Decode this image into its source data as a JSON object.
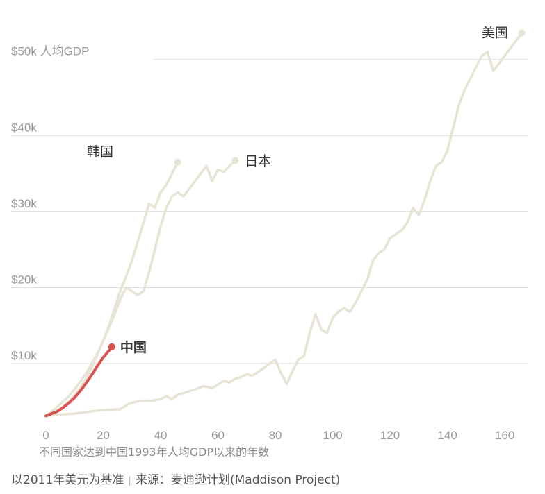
{
  "chart_data": {
    "type": "line",
    "title": "",
    "xlabel": "不同国家达到中国1993年人均GDP以来的年数",
    "ylabel": "",
    "xlim": [
      0,
      167
    ],
    "ylim": [
      2500,
      56000
    ],
    "x_ticks": [
      0,
      20,
      40,
      60,
      80,
      100,
      120,
      140,
      160
    ],
    "x_tick_labels": [
      "0",
      "20",
      "40",
      "60",
      "80",
      "100",
      "120",
      "140",
      "160"
    ],
    "y_ticks": [
      10000,
      20000,
      30000,
      40000,
      50000
    ],
    "y_tick_labels": [
      "$10k",
      "$20k",
      "$30k",
      "$40k",
      "$50k 人均GDP"
    ],
    "grid": true,
    "series": [
      {
        "name": "美国",
        "color": "#e7e4d5",
        "x": [
          0,
          3,
          6,
          10,
          14,
          18,
          22,
          26,
          29,
          33,
          37,
          40,
          42,
          44,
          46,
          48,
          52,
          55,
          58,
          60,
          62,
          64,
          66,
          68,
          70,
          72,
          74,
          76,
          78,
          80,
          82,
          84,
          86,
          88,
          90,
          92,
          94,
          96,
          98,
          100,
          102,
          104,
          106,
          108,
          110,
          112,
          114,
          116,
          118,
          120,
          122,
          124,
          126,
          128,
          130,
          132,
          134,
          136,
          138,
          140,
          142,
          144,
          146,
          148,
          150,
          152,
          154,
          156,
          158,
          160,
          162,
          164,
          166
        ],
        "y": [
          3100,
          3200,
          3300,
          3400,
          3600,
          3800,
          3900,
          4000,
          4700,
          5100,
          5100,
          5300,
          5700,
          5300,
          5900,
          6100,
          6600,
          7000,
          6800,
          7200,
          7700,
          7500,
          8000,
          8200,
          8600,
          8400,
          8900,
          9400,
          10000,
          10500,
          8700,
          7300,
          9000,
          10500,
          11000,
          14000,
          16500,
          14500,
          14000,
          16000,
          16800,
          17300,
          16800,
          18000,
          19500,
          21000,
          23500,
          24500,
          25000,
          26500,
          27000,
          27500,
          28500,
          30500,
          29500,
          31500,
          34000,
          36000,
          36500,
          38000,
          41000,
          44000,
          46000,
          47500,
          49000,
          50500,
          51000,
          48500,
          49500,
          50500,
          51500,
          52500,
          53500
        ]
      },
      {
        "name": "日本",
        "color": "#e7e4d5",
        "x": [
          0,
          2,
          4,
          6,
          8,
          10,
          12,
          14,
          16,
          18,
          20,
          22,
          24,
          26,
          28,
          30,
          32,
          34,
          36,
          38,
          40,
          42,
          44,
          46,
          48,
          50,
          52,
          54,
          56,
          58,
          60,
          62,
          64,
          66
        ],
        "y": [
          3100,
          3700,
          4300,
          5000,
          5700,
          6600,
          7600,
          8700,
          10000,
          11400,
          13000,
          14700,
          16500,
          18500,
          20000,
          19500,
          19000,
          19500,
          22000,
          25000,
          28000,
          30500,
          32000,
          32500,
          32000,
          33000,
          34000,
          35000,
          36000,
          34000,
          35500,
          35200,
          36000,
          36700
        ]
      },
      {
        "name": "韩国",
        "color": "#e7e4d5",
        "x": [
          0,
          2,
          4,
          6,
          8,
          10,
          12,
          14,
          16,
          18,
          20,
          22,
          24,
          26,
          28,
          30,
          32,
          34,
          36,
          38,
          40,
          42,
          44,
          46
        ],
        "y": [
          3100,
          3400,
          3800,
          4300,
          5000,
          5800,
          6800,
          8000,
          9500,
          11200,
          13000,
          15000,
          17300,
          19600,
          21500,
          23500,
          26000,
          28500,
          31000,
          30500,
          32500,
          33500,
          35000,
          36500
        ]
      },
      {
        "name": "中国",
        "color": "#d9534f",
        "highlight": true,
        "x": [
          0,
          2,
          4,
          6,
          8,
          10,
          12,
          14,
          16,
          18,
          20,
          22,
          23
        ],
        "y": [
          3100,
          3400,
          3700,
          4200,
          4800,
          5500,
          6400,
          7400,
          8500,
          9700,
          10800,
          11700,
          12200
        ]
      }
    ]
  },
  "footer": {
    "basis": "以2011年美元为基准",
    "sep": "|",
    "source": "来源：麦迪逊计划(Maddison Project)"
  }
}
